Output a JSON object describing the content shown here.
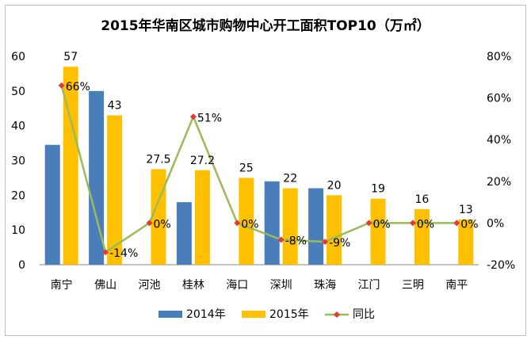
{
  "chart_data": {
    "type": "bar",
    "title": "2015年华南区城市购物中心开工面积TOP10（万㎡）",
    "categories": [
      "南宁",
      "佛山",
      "河池",
      "桂林",
      "海口",
      "深圳",
      "珠海",
      "江门",
      "三明",
      "南平"
    ],
    "series": [
      {
        "name": "2014年",
        "type": "bar",
        "axis": "left",
        "color": "#4a7ebb",
        "values": [
          34.5,
          50,
          null,
          18,
          null,
          24,
          22,
          null,
          null,
          null
        ],
        "labels": [
          "",
          "",
          "",
          "",
          "",
          "",
          "",
          "",
          "",
          ""
        ]
      },
      {
        "name": "2015年",
        "type": "bar",
        "axis": "left",
        "color": "#ffc000",
        "values": [
          57,
          43,
          27.5,
          27.2,
          25,
          22,
          20,
          19,
          16,
          13
        ],
        "labels": [
          "57",
          "43",
          "27.5",
          "27.2",
          "25",
          "22",
          "20",
          "19",
          "16",
          "13"
        ]
      },
      {
        "name": "同比",
        "type": "line",
        "axis": "right",
        "color": "#9bbb59",
        "marker_color": "#e03c31",
        "values": [
          66,
          -14,
          0,
          51,
          0,
          -8,
          -9,
          0,
          0,
          0
        ],
        "labels": [
          "66%",
          "-14%",
          "0%",
          "51%",
          "0%",
          "-8%",
          "-9%",
          "0%",
          "0%",
          "0%"
        ]
      }
    ],
    "y_left": {
      "min": 0,
      "max": 60,
      "ticks": [
        "0",
        "10",
        "20",
        "30",
        "40",
        "50",
        "60"
      ]
    },
    "y_right": {
      "min": -20,
      "max": 80,
      "ticks": [
        "-20%",
        "0%",
        "20%",
        "40%",
        "60%",
        "80%"
      ]
    },
    "grid": false,
    "legend_position": "bottom"
  }
}
